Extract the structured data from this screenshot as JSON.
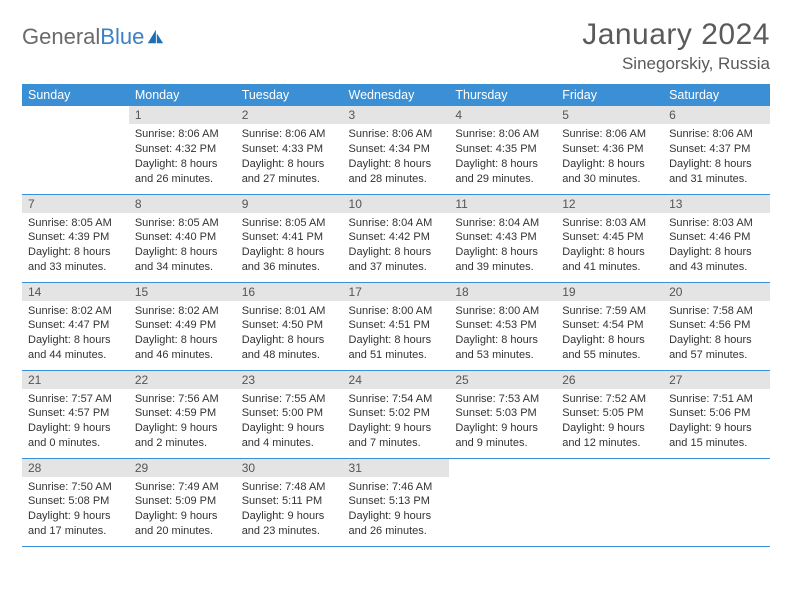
{
  "brand": {
    "name_a": "General",
    "name_b": "Blue"
  },
  "title": "January 2024",
  "location": "Sinegorskiy, Russia",
  "colors": {
    "header_bg": "#3b8fd4",
    "header_text": "#ffffff",
    "daynum_bg": "#e4e4e4",
    "row_border": "#3b8fd4",
    "body_text": "#333333",
    "title_text": "#5a5a5a",
    "logo_gray": "#6a6a6a",
    "logo_blue": "#3b7fc4"
  },
  "dow": [
    "Sunday",
    "Monday",
    "Tuesday",
    "Wednesday",
    "Thursday",
    "Friday",
    "Saturday"
  ],
  "weeks": [
    [
      {
        "n": "",
        "lines": []
      },
      {
        "n": "1",
        "lines": [
          "Sunrise: 8:06 AM",
          "Sunset: 4:32 PM",
          "Daylight: 8 hours",
          "and 26 minutes."
        ]
      },
      {
        "n": "2",
        "lines": [
          "Sunrise: 8:06 AM",
          "Sunset: 4:33 PM",
          "Daylight: 8 hours",
          "and 27 minutes."
        ]
      },
      {
        "n": "3",
        "lines": [
          "Sunrise: 8:06 AM",
          "Sunset: 4:34 PM",
          "Daylight: 8 hours",
          "and 28 minutes."
        ]
      },
      {
        "n": "4",
        "lines": [
          "Sunrise: 8:06 AM",
          "Sunset: 4:35 PM",
          "Daylight: 8 hours",
          "and 29 minutes."
        ]
      },
      {
        "n": "5",
        "lines": [
          "Sunrise: 8:06 AM",
          "Sunset: 4:36 PM",
          "Daylight: 8 hours",
          "and 30 minutes."
        ]
      },
      {
        "n": "6",
        "lines": [
          "Sunrise: 8:06 AM",
          "Sunset: 4:37 PM",
          "Daylight: 8 hours",
          "and 31 minutes."
        ]
      }
    ],
    [
      {
        "n": "7",
        "lines": [
          "Sunrise: 8:05 AM",
          "Sunset: 4:39 PM",
          "Daylight: 8 hours",
          "and 33 minutes."
        ]
      },
      {
        "n": "8",
        "lines": [
          "Sunrise: 8:05 AM",
          "Sunset: 4:40 PM",
          "Daylight: 8 hours",
          "and 34 minutes."
        ]
      },
      {
        "n": "9",
        "lines": [
          "Sunrise: 8:05 AM",
          "Sunset: 4:41 PM",
          "Daylight: 8 hours",
          "and 36 minutes."
        ]
      },
      {
        "n": "10",
        "lines": [
          "Sunrise: 8:04 AM",
          "Sunset: 4:42 PM",
          "Daylight: 8 hours",
          "and 37 minutes."
        ]
      },
      {
        "n": "11",
        "lines": [
          "Sunrise: 8:04 AM",
          "Sunset: 4:43 PM",
          "Daylight: 8 hours",
          "and 39 minutes."
        ]
      },
      {
        "n": "12",
        "lines": [
          "Sunrise: 8:03 AM",
          "Sunset: 4:45 PM",
          "Daylight: 8 hours",
          "and 41 minutes."
        ]
      },
      {
        "n": "13",
        "lines": [
          "Sunrise: 8:03 AM",
          "Sunset: 4:46 PM",
          "Daylight: 8 hours",
          "and 43 minutes."
        ]
      }
    ],
    [
      {
        "n": "14",
        "lines": [
          "Sunrise: 8:02 AM",
          "Sunset: 4:47 PM",
          "Daylight: 8 hours",
          "and 44 minutes."
        ]
      },
      {
        "n": "15",
        "lines": [
          "Sunrise: 8:02 AM",
          "Sunset: 4:49 PM",
          "Daylight: 8 hours",
          "and 46 minutes."
        ]
      },
      {
        "n": "16",
        "lines": [
          "Sunrise: 8:01 AM",
          "Sunset: 4:50 PM",
          "Daylight: 8 hours",
          "and 48 minutes."
        ]
      },
      {
        "n": "17",
        "lines": [
          "Sunrise: 8:00 AM",
          "Sunset: 4:51 PM",
          "Daylight: 8 hours",
          "and 51 minutes."
        ]
      },
      {
        "n": "18",
        "lines": [
          "Sunrise: 8:00 AM",
          "Sunset: 4:53 PM",
          "Daylight: 8 hours",
          "and 53 minutes."
        ]
      },
      {
        "n": "19",
        "lines": [
          "Sunrise: 7:59 AM",
          "Sunset: 4:54 PM",
          "Daylight: 8 hours",
          "and 55 minutes."
        ]
      },
      {
        "n": "20",
        "lines": [
          "Sunrise: 7:58 AM",
          "Sunset: 4:56 PM",
          "Daylight: 8 hours",
          "and 57 minutes."
        ]
      }
    ],
    [
      {
        "n": "21",
        "lines": [
          "Sunrise: 7:57 AM",
          "Sunset: 4:57 PM",
          "Daylight: 9 hours",
          "and 0 minutes."
        ]
      },
      {
        "n": "22",
        "lines": [
          "Sunrise: 7:56 AM",
          "Sunset: 4:59 PM",
          "Daylight: 9 hours",
          "and 2 minutes."
        ]
      },
      {
        "n": "23",
        "lines": [
          "Sunrise: 7:55 AM",
          "Sunset: 5:00 PM",
          "Daylight: 9 hours",
          "and 4 minutes."
        ]
      },
      {
        "n": "24",
        "lines": [
          "Sunrise: 7:54 AM",
          "Sunset: 5:02 PM",
          "Daylight: 9 hours",
          "and 7 minutes."
        ]
      },
      {
        "n": "25",
        "lines": [
          "Sunrise: 7:53 AM",
          "Sunset: 5:03 PM",
          "Daylight: 9 hours",
          "and 9 minutes."
        ]
      },
      {
        "n": "26",
        "lines": [
          "Sunrise: 7:52 AM",
          "Sunset: 5:05 PM",
          "Daylight: 9 hours",
          "and 12 minutes."
        ]
      },
      {
        "n": "27",
        "lines": [
          "Sunrise: 7:51 AM",
          "Sunset: 5:06 PM",
          "Daylight: 9 hours",
          "and 15 minutes."
        ]
      }
    ],
    [
      {
        "n": "28",
        "lines": [
          "Sunrise: 7:50 AM",
          "Sunset: 5:08 PM",
          "Daylight: 9 hours",
          "and 17 minutes."
        ]
      },
      {
        "n": "29",
        "lines": [
          "Sunrise: 7:49 AM",
          "Sunset: 5:09 PM",
          "Daylight: 9 hours",
          "and 20 minutes."
        ]
      },
      {
        "n": "30",
        "lines": [
          "Sunrise: 7:48 AM",
          "Sunset: 5:11 PM",
          "Daylight: 9 hours",
          "and 23 minutes."
        ]
      },
      {
        "n": "31",
        "lines": [
          "Sunrise: 7:46 AM",
          "Sunset: 5:13 PM",
          "Daylight: 9 hours",
          "and 26 minutes."
        ]
      },
      {
        "n": "",
        "lines": []
      },
      {
        "n": "",
        "lines": []
      },
      {
        "n": "",
        "lines": []
      }
    ]
  ]
}
